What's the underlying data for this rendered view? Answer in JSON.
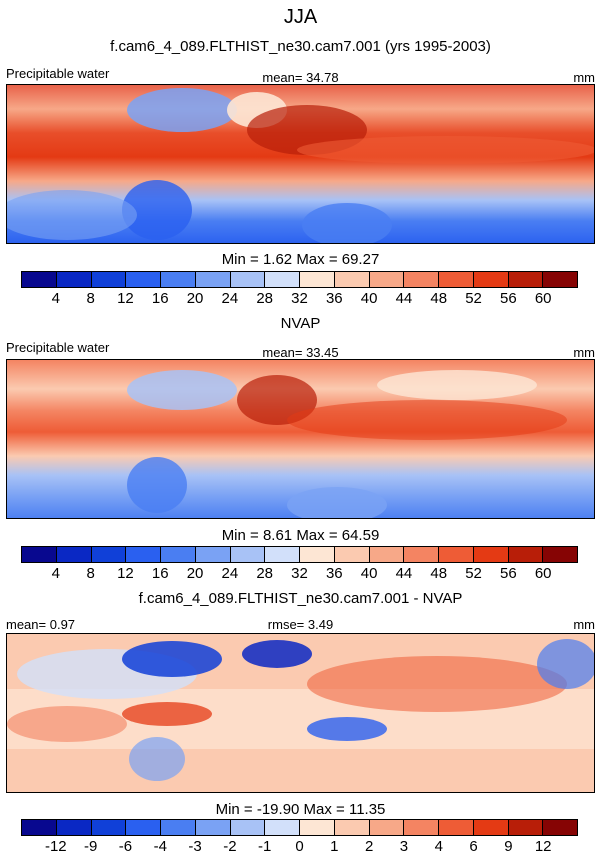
{
  "title": "JJA",
  "panels": [
    {
      "header": "f.cam6_4_089.FLTHIST_ne30.cam7.001 (yrs 1995-2003)",
      "left_label": "Precipitable water",
      "center_label": "mean=  34.78",
      "right_label": "mm",
      "minmax": "Min =   1.62 Max =  69.27",
      "colorbar": {
        "colors": [
          "#08088f",
          "#0a28c4",
          "#1040d8",
          "#2a60f0",
          "#4a7ef2",
          "#7aa2f4",
          "#a8c2f6",
          "#d2e0fa",
          "#fde6d4",
          "#fbcab0",
          "#f7a888",
          "#f48462",
          "#ee5c36",
          "#e43a14",
          "#b81e08",
          "#860404"
        ],
        "ticks": [
          "4",
          "8",
          "12",
          "16",
          "20",
          "24",
          "28",
          "32",
          "36",
          "40",
          "44",
          "48",
          "52",
          "56",
          "60"
        ]
      }
    },
    {
      "header": "NVAP",
      "left_label": "Precipitable water",
      "center_label": "mean=  33.45",
      "right_label": "mm",
      "minmax": "Min =   8.61 Max =  64.59",
      "colorbar": {
        "colors": [
          "#08088f",
          "#0a28c4",
          "#1040d8",
          "#2a60f0",
          "#4a7ef2",
          "#7aa2f4",
          "#a8c2f6",
          "#d2e0fa",
          "#fde6d4",
          "#fbcab0",
          "#f7a888",
          "#f48462",
          "#ee5c36",
          "#e43a14",
          "#b81e08",
          "#860404"
        ],
        "ticks": [
          "4",
          "8",
          "12",
          "16",
          "20",
          "24",
          "28",
          "32",
          "36",
          "40",
          "44",
          "48",
          "52",
          "56",
          "60"
        ]
      }
    },
    {
      "header": "f.cam6_4_089.FLTHIST_ne30.cam7.001 - NVAP",
      "left_label": "mean=   0.97",
      "center_label": "rmse=   3.49",
      "right_label": "mm",
      "minmax": "Min = -19.90 Max =  11.35",
      "colorbar": {
        "colors": [
          "#08088f",
          "#0a28c4",
          "#1040d8",
          "#2a60f0",
          "#4a7ef2",
          "#7aa2f4",
          "#a8c2f6",
          "#d2e0fa",
          "#fde6d4",
          "#fbcab0",
          "#f7a888",
          "#f48462",
          "#ee5c36",
          "#e43a14",
          "#b81e08",
          "#860404"
        ],
        "ticks": [
          "-12",
          "-9",
          "-6",
          "-4",
          "-3",
          "-2",
          "-1",
          "0",
          "1",
          "2",
          "3",
          "4",
          "6",
          "9",
          "12"
        ]
      }
    }
  ]
}
